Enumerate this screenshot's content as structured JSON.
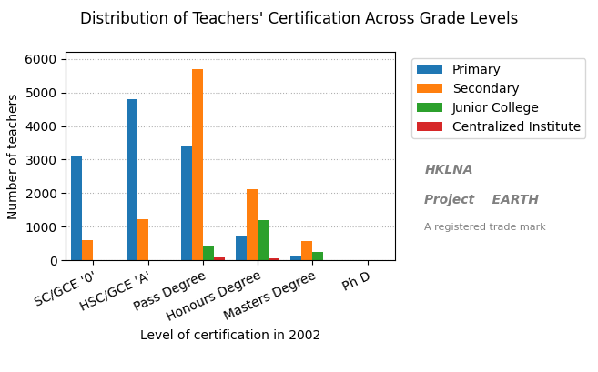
{
  "chart_data": {
    "type": "bar",
    "title": "Distribution of Teachers' Certification Across Grade Levels",
    "xlabel": "Level of certification in 2002",
    "ylabel": "Number of teachers",
    "categories": [
      "SC/GCE '0'",
      "HSC/GCE 'A'",
      "Pass Degree",
      "Honours Degree",
      "Masters Degree",
      "Ph D"
    ],
    "series": [
      {
        "name": "Primary",
        "values": [
          3100,
          4800,
          3400,
          700,
          150,
          20
        ]
      },
      {
        "name": "Secondary",
        "values": [
          600,
          1230,
          5700,
          2130,
          570,
          20
        ]
      },
      {
        "name": "Junior College",
        "values": [
          0,
          0,
          420,
          1200,
          250,
          0
        ]
      },
      {
        "name": "Centralized Institute",
        "values": [
          0,
          0,
          80,
          60,
          20,
          10
        ]
      }
    ],
    "ylim": [
      0,
      6200
    ],
    "yticks": [
      0,
      1000,
      2000,
      3000,
      4000,
      5000,
      6000
    ],
    "grid": true,
    "legend": "upper right",
    "annotations": [
      "HKLNA",
      "Project    EARTH",
      "A registered trade mark"
    ]
  }
}
